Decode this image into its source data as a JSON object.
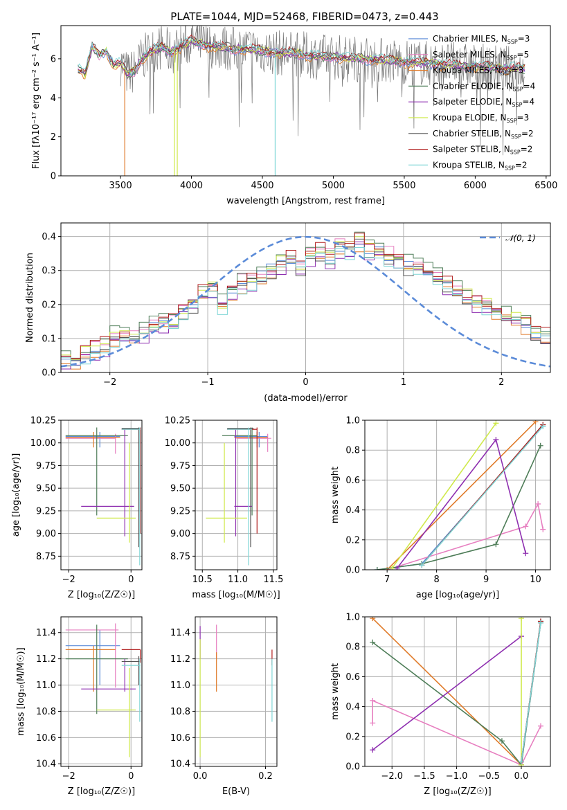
{
  "title": "PLATE=1044, MJD=52468, FIBERID=0473, z=0.443",
  "colors": {
    "chabrier_miles": "#5b8bd8",
    "salpeter_miles": "#e77fc0",
    "kroupa_miles": "#e07b2a",
    "chabrier_elodie": "#4e7d58",
    "salpeter_elodie": "#8e2fb0",
    "kroupa_elodie": "#cfe94a",
    "chabrier_stelib": "#555555",
    "salpeter_stelib": "#b01c1c",
    "kroupa_stelib": "#7fd6d6",
    "normal_curve": "#5b8bd8",
    "grid": "#b0b0b0"
  },
  "chart_data": [
    {
      "id": "spectrum",
      "type": "line",
      "xlabel": "wavelength [Angstrom, rest frame]",
      "ylabel": "Flux [fλ10⁻¹⁷ erg cm⁻² s⁻¹ A⁻¹]",
      "xlim": [
        3080,
        6530
      ],
      "ylim": [
        0,
        7.7
      ],
      "xticks": [
        "3500",
        "4000",
        "4500",
        "5000",
        "5500",
        "6000",
        "6500"
      ],
      "yticks": [
        "0",
        "2",
        "4",
        "6"
      ],
      "grid": false,
      "legend_position": "right",
      "data_range": [
        3200,
        6350
      ],
      "data_points": [
        [
          3200,
          5.5
        ],
        [
          3250,
          5.2
        ],
        [
          3300,
          6.6
        ],
        [
          3350,
          6.2
        ],
        [
          3400,
          6.4
        ],
        [
          3450,
          5.7
        ],
        [
          3500,
          5.8
        ],
        [
          3550,
          5.2
        ],
        [
          3600,
          5.4
        ],
        [
          3650,
          6.0
        ],
        [
          3700,
          6.3
        ],
        [
          3750,
          6.5
        ],
        [
          3800,
          6.6
        ],
        [
          3850,
          6.3
        ],
        [
          3900,
          6.5
        ],
        [
          3950,
          6.7
        ],
        [
          4000,
          6.9
        ],
        [
          4100,
          6.7
        ],
        [
          4200,
          6.6
        ],
        [
          4300,
          6.5
        ],
        [
          4400,
          6.5
        ],
        [
          4500,
          6.4
        ],
        [
          4600,
          6.3
        ],
        [
          4700,
          6.3
        ],
        [
          4800,
          6.2
        ],
        [
          4900,
          6.1
        ],
        [
          5000,
          6.1
        ],
        [
          5200,
          6.0
        ],
        [
          5400,
          5.9
        ],
        [
          5600,
          5.8
        ],
        [
          5800,
          5.7
        ],
        [
          6000,
          5.6
        ],
        [
          6200,
          5.5
        ],
        [
          6350,
          5.5
        ]
      ],
      "series": [
        {
          "name": "Chabrier MILES, N",
          "sub": "SSP",
          "eq": "=3",
          "color_key": "chabrier_miles"
        },
        {
          "name": "Salpeter MILES, N",
          "sub": "SSP",
          "eq": "=5",
          "color_key": "salpeter_miles"
        },
        {
          "name": "Kroupa MILES, N",
          "sub": "SSP",
          "eq": "=3",
          "color_key": "kroupa_miles"
        },
        {
          "name": "Chabrier ELODIE, N",
          "sub": "SSP",
          "eq": "=4",
          "color_key": "chabrier_elodie"
        },
        {
          "name": "Salpeter ELODIE, N",
          "sub": "SSP",
          "eq": "=4",
          "color_key": "salpeter_elodie"
        },
        {
          "name": "Kroupa ELODIE, N",
          "sub": "SSP",
          "eq": "=3",
          "color_key": "kroupa_elodie"
        },
        {
          "name": "Chabrier STELIB, N",
          "sub": "SSP",
          "eq": "=2",
          "color_key": "chabrier_stelib"
        },
        {
          "name": "Salpeter STELIB, N",
          "sub": "SSP",
          "eq": "=2",
          "color_key": "salpeter_stelib"
        },
        {
          "name": "Kroupa STELIB, N",
          "sub": "SSP",
          "eq": "=2",
          "color_key": "kroupa_stelib"
        }
      ],
      "features": [
        {
          "x": 3530,
          "y": 0.0,
          "color_key": "kroupa_miles",
          "start": 3500
        },
        {
          "x": 3880,
          "y": 0.0,
          "color_key": "kroupa_elodie",
          "start": 3870
        },
        {
          "x": 3900,
          "y": 0.0,
          "color_key": "kroupa_elodie",
          "start": 3900
        },
        {
          "x": 4590,
          "y": 0.0,
          "color_key": "kroupa_stelib",
          "start": 4590
        }
      ]
    },
    {
      "id": "residuals",
      "type": "histogram",
      "xlabel": "(data-model)/error",
      "ylabel": "Normed distribution",
      "xlim": [
        -2.5,
        2.5
      ],
      "ylim": [
        0,
        0.44
      ],
      "xticks": [
        "−2",
        "−1",
        "0",
        "1",
        "2"
      ],
      "yticks": [
        "0.0",
        "0.1",
        "0.2",
        "0.3",
        "0.4"
      ],
      "grid": true,
      "legend_position": "top-right",
      "legend_label": "𝒩(0, 1)",
      "bin_width": 0.1,
      "bin_start": -2.5,
      "hist_values": [
        0.04,
        0.03,
        0.05,
        0.07,
        0.08,
        0.1,
        0.11,
        0.1,
        0.12,
        0.14,
        0.15,
        0.14,
        0.18,
        0.2,
        0.23,
        0.24,
        0.2,
        0.24,
        0.26,
        0.27,
        0.28,
        0.3,
        0.32,
        0.33,
        0.31,
        0.34,
        0.35,
        0.34,
        0.37,
        0.36,
        0.38,
        0.36,
        0.35,
        0.34,
        0.33,
        0.31,
        0.3,
        0.29,
        0.27,
        0.26,
        0.24,
        0.22,
        0.21,
        0.2,
        0.18,
        0.16,
        0.15,
        0.14,
        0.12,
        0.11
      ],
      "series_offsets": [
        0.0,
        0.012,
        -0.01,
        0.018,
        -0.015,
        0.008,
        -0.006,
        0.014,
        -0.012
      ]
    },
    {
      "id": "age_vs_Z",
      "type": "errorbar",
      "xlabel": "Z [log₁₀(Z/Z☉)]",
      "ylabel": "age  [log₁₀(age/yr)]",
      "xlim": [
        -2.25,
        0.35
      ],
      "ylim": [
        8.6,
        10.25
      ],
      "xticks": [
        "−2",
        "0"
      ],
      "yticks": [
        "8.75",
        "9.00",
        "9.25",
        "9.50",
        "9.75",
        "10.00",
        "10.25"
      ],
      "grid": true,
      "points": [
        {
          "color_key": "chabrier_miles",
          "x": -1.0,
          "xlo": -2.1,
          "xhi": -0.35,
          "y": 10.07,
          "ylo": 9.95,
          "yhi": 10.12
        },
        {
          "color_key": "salpeter_miles",
          "x": -0.5,
          "xlo": -2.1,
          "xhi": -0.5,
          "y": 10.05,
          "ylo": 9.88,
          "yhi": 10.1
        },
        {
          "color_key": "kroupa_miles",
          "x": -1.2,
          "xlo": -2.1,
          "xhi": -0.35,
          "y": 10.06,
          "ylo": 9.95,
          "yhi": 10.12
        },
        {
          "color_key": "chabrier_elodie",
          "x": -1.1,
          "xlo": -2.1,
          "xhi": -0.1,
          "y": 10.08,
          "ylo": 9.2,
          "yhi": 10.17
        },
        {
          "color_key": "salpeter_elodie",
          "x": -0.2,
          "xlo": -1.6,
          "xhi": 0.1,
          "y": 9.3,
          "ylo": 8.97,
          "yhi": 10.15
        },
        {
          "color_key": "kroupa_elodie",
          "x": -0.05,
          "xlo": -1.1,
          "xhi": 0.15,
          "y": 9.17,
          "ylo": 8.9,
          "yhi": 10.0
        },
        {
          "color_key": "chabrier_stelib",
          "x": 0.25,
          "xlo": -0.3,
          "xhi": 0.3,
          "y": 10.16,
          "ylo": 8.85,
          "yhi": 10.17
        },
        {
          "color_key": "salpeter_stelib",
          "x": 0.3,
          "xlo": -0.3,
          "xhi": 0.3,
          "y": 10.15,
          "ylo": 9.0,
          "yhi": 10.17
        },
        {
          "color_key": "kroupa_stelib",
          "x": 0.28,
          "xlo": -0.3,
          "xhi": 0.3,
          "y": 10.15,
          "ylo": 8.65,
          "yhi": 10.17
        }
      ]
    },
    {
      "id": "age_vs_mass",
      "type": "errorbar",
      "xlabel": "mass [log₁₀(M/M☉)]",
      "ylabel": "",
      "xlim": [
        10.4,
        11.55
      ],
      "ylim": [
        8.6,
        10.25
      ],
      "xticks": [
        "10.5",
        "11.0",
        "11.5"
      ],
      "yticks": [
        "8.75",
        "9.00",
        "9.25",
        "9.50",
        "9.75",
        "10.00",
        "10.25"
      ],
      "grid": true,
      "points": [
        {
          "color_key": "chabrier_miles",
          "x": 11.3,
          "xlo": 10.95,
          "xhi": 11.42,
          "y": 10.07,
          "ylo": 9.95,
          "yhi": 10.12
        },
        {
          "color_key": "salpeter_miles",
          "x": 11.42,
          "xlo": 10.98,
          "xhi": 11.47,
          "y": 10.05,
          "ylo": 9.9,
          "yhi": 10.1
        },
        {
          "color_key": "kroupa_miles",
          "x": 11.27,
          "xlo": 10.95,
          "xhi": 11.42,
          "y": 10.06,
          "ylo": 9.95,
          "yhi": 10.12
        },
        {
          "color_key": "chabrier_elodie",
          "x": 11.2,
          "xlo": 10.78,
          "xhi": 11.27,
          "y": 10.08,
          "ylo": 9.2,
          "yhi": 10.17
        },
        {
          "color_key": "salpeter_elodie",
          "x": 10.97,
          "xlo": 10.95,
          "xhi": 11.2,
          "y": 9.3,
          "ylo": 8.97,
          "yhi": 10.15
        },
        {
          "color_key": "kroupa_elodie",
          "x": 10.81,
          "xlo": 10.55,
          "xhi": 11.13,
          "y": 9.17,
          "ylo": 8.9,
          "yhi": 10.0
        },
        {
          "color_key": "chabrier_stelib",
          "x": 11.18,
          "xlo": 10.85,
          "xhi": 11.22,
          "y": 10.16,
          "ylo": 8.85,
          "yhi": 10.17
        },
        {
          "color_key": "salpeter_stelib",
          "x": 11.27,
          "xlo": 10.85,
          "xhi": 11.27,
          "y": 10.15,
          "ylo": 9.0,
          "yhi": 10.17
        },
        {
          "color_key": "kroupa_stelib",
          "x": 11.15,
          "xlo": 10.85,
          "xhi": 11.2,
          "y": 10.15,
          "ylo": 8.65,
          "yhi": 10.17
        }
      ]
    },
    {
      "id": "weight_vs_age",
      "type": "line",
      "xlabel": "age  [log₁₀(age/yr)]",
      "ylabel": "mass weight",
      "xlim": [
        6.55,
        10.3
      ],
      "ylim": [
        0,
        1
      ],
      "xticks": [
        "7",
        "8",
        "9",
        "10"
      ],
      "yticks": [
        "0.0",
        "0.2",
        "0.4",
        "0.6",
        "0.8",
        "1.0"
      ],
      "grid": true,
      "series": [
        {
          "color_key": "chabrier_miles",
          "x": [
            6.8,
            7.7,
            10.15
          ],
          "y": [
            0.0,
            0.04,
            0.96
          ]
        },
        {
          "color_key": "salpeter_miles",
          "x": [
            7.0,
            9.8,
            10.05,
            10.15
          ],
          "y": [
            0.0,
            0.29,
            0.44,
            0.27
          ]
        },
        {
          "color_key": "kroupa_miles",
          "x": [
            7.0,
            10.0
          ],
          "y": [
            0.0,
            0.99
          ]
        },
        {
          "color_key": "chabrier_elodie",
          "x": [
            6.8,
            7.7,
            9.2,
            10.1
          ],
          "y": [
            0.0,
            0.04,
            0.17,
            0.83
          ]
        },
        {
          "color_key": "salpeter_elodie",
          "x": [
            7.2,
            9.2,
            9.8
          ],
          "y": [
            0.01,
            0.87,
            0.11
          ]
        },
        {
          "color_key": "kroupa_elodie",
          "x": [
            7.1,
            9.2
          ],
          "y": [
            0.01,
            0.98
          ]
        },
        {
          "color_key": "chabrier_stelib",
          "x": [
            7.7,
            10.15
          ],
          "y": [
            0.03,
            0.97
          ]
        },
        {
          "color_key": "salpeter_stelib",
          "x": [
            7.7,
            10.15
          ],
          "y": [
            0.03,
            0.97
          ]
        },
        {
          "color_key": "kroupa_stelib",
          "x": [
            7.7,
            10.15
          ],
          "y": [
            0.03,
            0.96
          ]
        }
      ]
    },
    {
      "id": "mass_vs_Z",
      "type": "errorbar",
      "xlabel": "Z [log₁₀(Z/Z☉)]",
      "ylabel": "mass [log₁₀(M/M☉)]",
      "xlim": [
        -2.25,
        0.35
      ],
      "ylim": [
        10.38,
        11.52
      ],
      "xticks": [
        "−2",
        "0"
      ],
      "yticks": [
        "10.4",
        "10.6",
        "10.8",
        "11.0",
        "11.2",
        "11.4"
      ],
      "grid": true,
      "points": [
        {
          "color_key": "chabrier_miles",
          "x": -1.0,
          "xlo": -2.1,
          "xhi": -0.35,
          "y": 11.3,
          "ylo": 11.0,
          "yhi": 11.42
        },
        {
          "color_key": "salpeter_miles",
          "x": -0.5,
          "xlo": -2.1,
          "xhi": -0.4,
          "y": 11.42,
          "ylo": 10.98,
          "yhi": 11.47
        },
        {
          "color_key": "kroupa_miles",
          "x": -1.2,
          "xlo": -2.1,
          "xhi": -0.5,
          "y": 11.27,
          "ylo": 10.95,
          "yhi": 11.3
        },
        {
          "color_key": "chabrier_elodie",
          "x": -1.1,
          "xlo": -2.1,
          "xhi": -0.1,
          "y": 11.2,
          "ylo": 10.78,
          "yhi": 11.46
        },
        {
          "color_key": "salpeter_elodie",
          "x": -0.2,
          "xlo": -1.6,
          "xhi": 0.15,
          "y": 10.97,
          "ylo": 10.95,
          "yhi": 11.2
        },
        {
          "color_key": "kroupa_elodie",
          "x": -0.05,
          "xlo": -1.1,
          "xhi": 0.15,
          "y": 10.81,
          "ylo": 10.45,
          "yhi": 11.13
        },
        {
          "color_key": "chabrier_stelib",
          "x": 0.25,
          "xlo": -0.3,
          "xhi": 0.3,
          "y": 11.18,
          "ylo": 11.0,
          "yhi": 11.22
        },
        {
          "color_key": "salpeter_stelib",
          "x": 0.3,
          "xlo": -0.3,
          "xhi": 0.3,
          "y": 11.27,
          "ylo": 11.17,
          "yhi": 11.27
        },
        {
          "color_key": "kroupa_stelib",
          "x": 0.28,
          "xlo": -0.3,
          "xhi": 0.3,
          "y": 11.15,
          "ylo": 10.72,
          "yhi": 11.2
        }
      ]
    },
    {
      "id": "mass_vs_ebv",
      "type": "errorbar",
      "xlabel": "E(B-V)",
      "ylabel": "",
      "xlim": [
        -0.015,
        0.235
      ],
      "ylim": [
        10.38,
        11.52
      ],
      "xticks": [
        "0.0",
        "0.2"
      ],
      "yticks": [
        "10.4",
        "10.6",
        "10.8",
        "11.0",
        "11.2",
        "11.4"
      ],
      "grid": true,
      "points": [
        {
          "color_key": "salpeter_elodie",
          "x": 0.0,
          "xlo": 0.0,
          "xhi": 0.0,
          "y": 11.35,
          "ylo": 11.2,
          "yhi": 11.45
        },
        {
          "color_key": "kroupa_elodie",
          "x": 0.0,
          "xlo": 0.0,
          "xhi": 0.0,
          "y": 10.9,
          "ylo": 10.45,
          "yhi": 11.35
        },
        {
          "color_key": "salpeter_miles",
          "x": 0.05,
          "xlo": 0.05,
          "xhi": 0.05,
          "y": 11.3,
          "ylo": 11.2,
          "yhi": 11.46
        },
        {
          "color_key": "kroupa_miles",
          "x": 0.05,
          "xlo": 0.05,
          "xhi": 0.05,
          "y": 11.1,
          "ylo": 10.95,
          "yhi": 11.25
        },
        {
          "color_key": "salpeter_stelib",
          "x": 0.22,
          "xlo": 0.22,
          "xhi": 0.22,
          "y": 11.22,
          "ylo": 11.15,
          "yhi": 11.27
        },
        {
          "color_key": "kroupa_stelib",
          "x": 0.22,
          "xlo": 0.22,
          "xhi": 0.22,
          "y": 10.95,
          "ylo": 10.72,
          "yhi": 11.2
        }
      ]
    },
    {
      "id": "weight_vs_Z",
      "type": "line",
      "xlabel": "Z [log₁₀(Z/Z☉)]",
      "ylabel": "mass weight",
      "xlim": [
        -2.42,
        0.45
      ],
      "ylim": [
        0,
        1
      ],
      "xticks": [
        "−2.0",
        "−1.5",
        "−1.0",
        "−0.5",
        "0.0"
      ],
      "yticks": [
        "0.0",
        "0.2",
        "0.4",
        "0.6",
        "0.8",
        "1.0"
      ],
      "grid": true,
      "series": [
        {
          "color_key": "chabrier_miles",
          "x": [
            0.0,
            0.3
          ],
          "y": [
            0.01,
            0.96
          ]
        },
        {
          "color_key": "salpeter_miles",
          "x": [
            -2.3,
            -2.3,
            0.0,
            0.3
          ],
          "y": [
            0.29,
            0.44,
            0.01,
            0.27
          ]
        },
        {
          "color_key": "kroupa_miles",
          "x": [
            -2.3,
            0.0
          ],
          "y": [
            0.99,
            0.01
          ]
        },
        {
          "color_key": "chabrier_elodie",
          "x": [
            -2.3,
            -0.3,
            0.0,
            0.3
          ],
          "y": [
            0.83,
            0.17,
            0.01,
            0.96
          ]
        },
        {
          "color_key": "salpeter_elodie",
          "x": [
            -2.3,
            0.0
          ],
          "y": [
            0.11,
            0.87
          ]
        },
        {
          "color_key": "kroupa_elodie",
          "x": [
            0.0,
            0.0
          ],
          "y": [
            0.01,
            0.99
          ]
        },
        {
          "color_key": "chabrier_stelib",
          "x": [
            0.0,
            0.3
          ],
          "y": [
            0.03,
            0.97
          ]
        },
        {
          "color_key": "salpeter_stelib",
          "x": [
            0.0,
            0.3
          ],
          "y": [
            0.03,
            0.97
          ]
        },
        {
          "color_key": "kroupa_stelib",
          "x": [
            0.0,
            0.3
          ],
          "y": [
            0.03,
            0.96
          ]
        }
      ]
    }
  ]
}
